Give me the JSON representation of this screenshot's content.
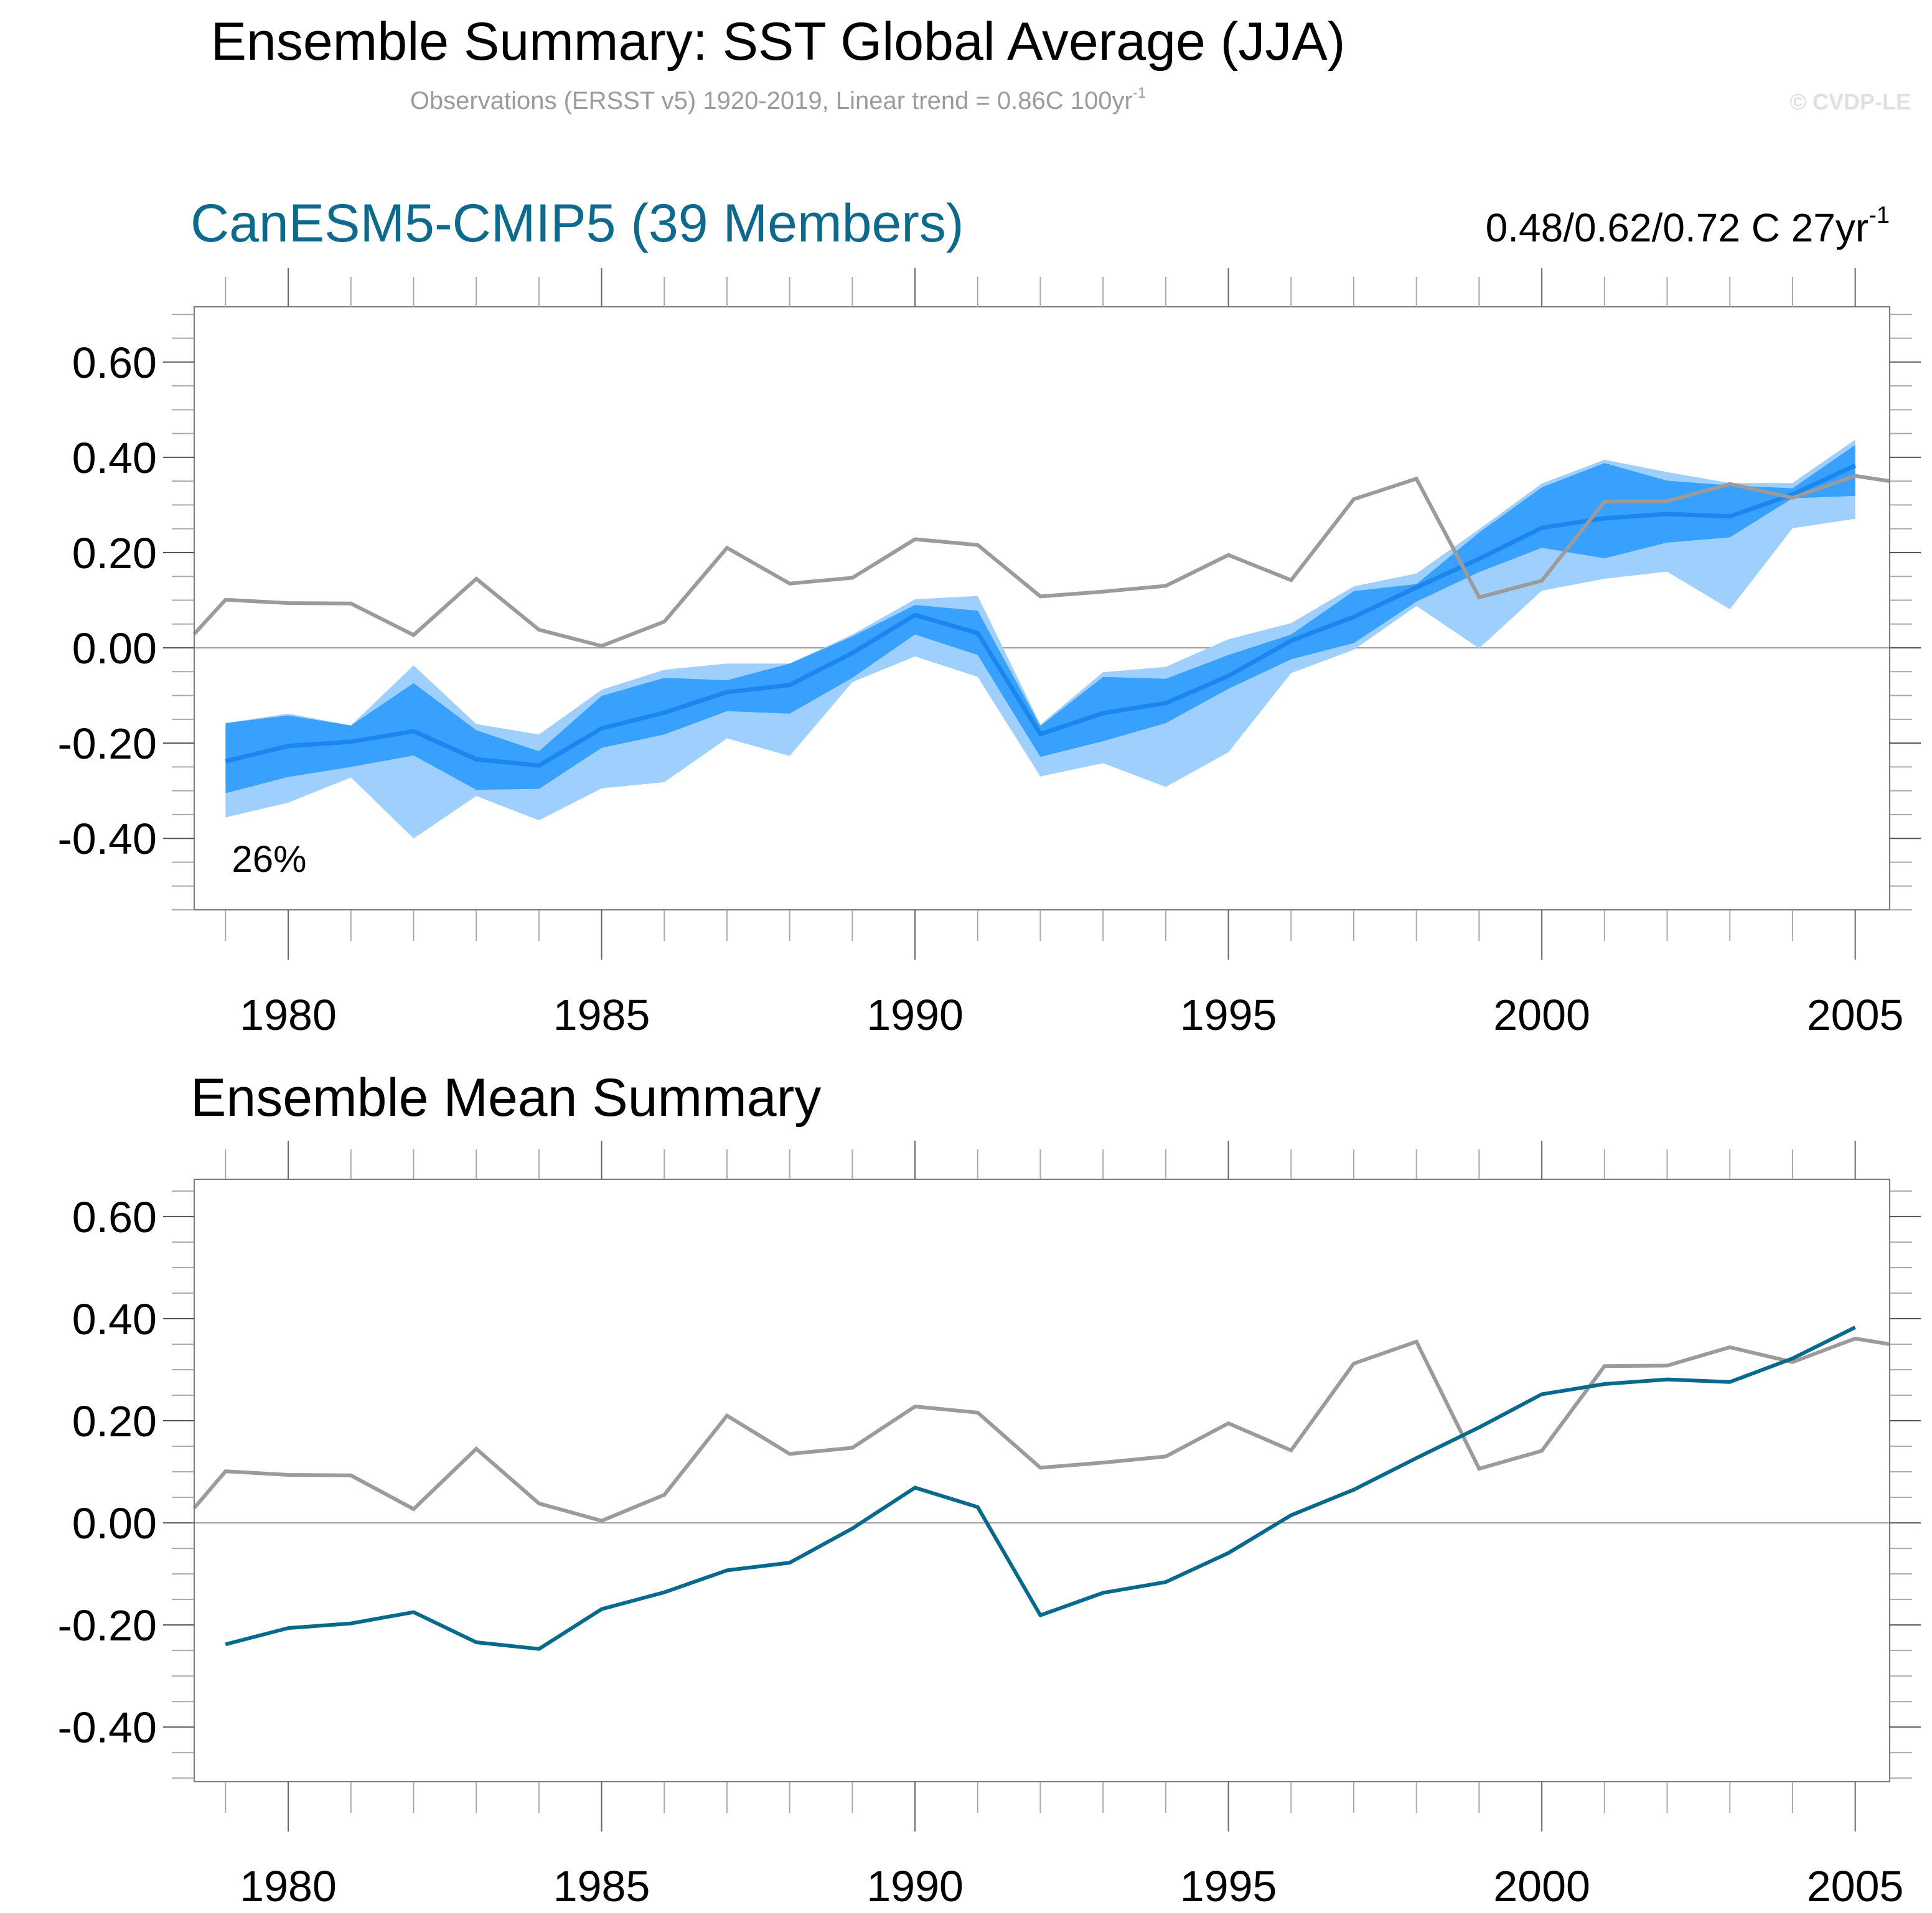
{
  "header": {
    "title": "Ensemble Summary: SST Global Average (JJA)",
    "subtitle_main": "Observations (ERSST v5) 1920-2019, Linear trend = 0.86C 100yr",
    "subtitle_sup": "-1",
    "copyright": "© CVDP-LE"
  },
  "panels": {
    "top": {
      "title": "CanESM5-CMIP5 (39 Members)",
      "trend_main": "0.48/0.62/0.72 C 27yr",
      "trend_sup": "-1",
      "percent_label": "26%"
    },
    "bottom": {
      "title": "Ensemble Mean Summary"
    }
  },
  "colors": {
    "title_teal": "#0d6a8c",
    "obs_line": "#9b9b9b",
    "band_outer": "#9fd0fd",
    "band_inner": "#38a0fd",
    "ens_mean_top": "#1a86ee",
    "ens_mean_bottom": "#076a8c",
    "axis": "#7a7a7a",
    "zero_line": "#9b9b9b"
  },
  "chart_data": [
    {
      "type": "area",
      "name": "ensemble-spread",
      "title": "CanESM5-CMIP5 (39 Members)",
      "xlabel": "",
      "ylabel": "",
      "xlim": [
        1978.5,
        2005.55
      ],
      "ylim": [
        -0.55,
        0.716
      ],
      "x_tick_labels": [
        "1980",
        "1985",
        "1990",
        "1995",
        "2000",
        "2005"
      ],
      "x_ticks": [
        1980,
        1985,
        1990,
        1995,
        2000,
        2005
      ],
      "y_tick_labels": [
        "0.60",
        "0.40",
        "0.20",
        "0.00",
        "-0.20",
        "-0.40"
      ],
      "y_ticks": [
        0.6,
        0.4,
        0.2,
        0.0,
        -0.2,
        -0.4
      ],
      "annotation": "26%",
      "grid": false,
      "years": [
        1979,
        1980,
        1981,
        1982,
        1983,
        1984,
        1985,
        1986,
        1987,
        1988,
        1989,
        1990,
        1991,
        1992,
        1993,
        1994,
        1995,
        1996,
        1997,
        1998,
        1999,
        2000,
        2001,
        2002,
        2003,
        2004,
        2005
      ],
      "series": [
        {
          "name": "outer-range-max",
          "values": [
            -0.158,
            -0.138,
            -0.163,
            -0.037,
            -0.16,
            -0.182,
            -0.088,
            -0.046,
            -0.033,
            -0.033,
            0.028,
            0.102,
            0.109,
            -0.161,
            -0.051,
            -0.04,
            0.018,
            0.052,
            0.129,
            0.156,
            0.249,
            0.345,
            0.395,
            0.369,
            0.346,
            0.346,
            0.437
          ]
        },
        {
          "name": "inner-range-max",
          "values": [
            -0.158,
            -0.142,
            -0.163,
            -0.074,
            -0.173,
            -0.217,
            -0.101,
            -0.063,
            -0.068,
            -0.033,
            0.024,
            0.09,
            0.078,
            -0.164,
            -0.061,
            -0.065,
            -0.015,
            0.028,
            0.119,
            0.134,
            0.242,
            0.337,
            0.388,
            0.351,
            0.341,
            0.335,
            0.426
          ]
        },
        {
          "name": "ensemble-mean",
          "values": [
            -0.238,
            -0.206,
            -0.197,
            -0.175,
            -0.234,
            -0.247,
            -0.169,
            -0.136,
            -0.093,
            -0.078,
            -0.011,
            0.069,
            0.031,
            -0.181,
            -0.137,
            -0.116,
            -0.059,
            0.015,
            0.065,
            0.127,
            0.187,
            0.252,
            0.272,
            0.281,
            0.276,
            0.322,
            0.383
          ]
        },
        {
          "name": "inner-range-min",
          "values": [
            -0.305,
            -0.271,
            -0.25,
            -0.226,
            -0.298,
            -0.296,
            -0.21,
            -0.182,
            -0.133,
            -0.138,
            -0.063,
            0.028,
            -0.015,
            -0.229,
            -0.196,
            -0.158,
            -0.086,
            -0.024,
            0.01,
            0.097,
            0.159,
            0.21,
            0.188,
            0.221,
            0.232,
            0.314,
            0.319
          ]
        },
        {
          "name": "outer-range-min",
          "values": [
            -0.356,
            -0.325,
            -0.272,
            -0.4,
            -0.311,
            -0.362,
            -0.295,
            -0.282,
            -0.19,
            -0.227,
            -0.072,
            -0.018,
            -0.061,
            -0.27,
            -0.242,
            -0.292,
            -0.219,
            -0.053,
            -0.004,
            0.088,
            -0.001,
            0.12,
            0.145,
            0.16,
            0.081,
            0.251,
            0.271
          ]
        }
      ],
      "observations": {
        "name": "ERSST v5",
        "x": [
          1978.5,
          1979,
          1980,
          1981,
          1982,
          1983,
          1984,
          1985,
          1986,
          1987,
          1988,
          1989,
          1990,
          1991,
          1992,
          1993,
          1994,
          1995,
          1996,
          1997,
          1998,
          1999,
          2000,
          2001,
          2002,
          2003,
          2004,
          2005,
          2005.55
        ],
        "values": [
          0.029,
          0.101,
          0.094,
          0.093,
          0.027,
          0.145,
          0.038,
          0.004,
          0.055,
          0.21,
          0.135,
          0.147,
          0.228,
          0.216,
          0.108,
          0.118,
          0.13,
          0.195,
          0.142,
          0.312,
          0.355,
          0.106,
          0.141,
          0.307,
          0.308,
          0.344,
          0.315,
          0.361,
          0.35
        ]
      }
    },
    {
      "type": "line",
      "name": "ensemble-mean-summary",
      "title": "Ensemble Mean Summary",
      "xlabel": "",
      "ylabel": "",
      "xlim": [
        1978.5,
        2005.55
      ],
      "ylim": [
        -0.507,
        0.673
      ],
      "x_tick_labels": [
        "1980",
        "1985",
        "1990",
        "1995",
        "2000",
        "2005"
      ],
      "x_ticks": [
        1980,
        1985,
        1990,
        1995,
        2000,
        2005
      ],
      "y_tick_labels": [
        "0.60",
        "0.40",
        "0.20",
        "0.00",
        "-0.20",
        "-0.40"
      ],
      "y_ticks": [
        0.6,
        0.4,
        0.2,
        0.0,
        -0.2,
        -0.4
      ],
      "grid": false,
      "series": [
        {
          "name": "CanESM5-CMIP5 ensemble mean",
          "x": [
            1979,
            1980,
            1981,
            1982,
            1983,
            1984,
            1985,
            1986,
            1987,
            1988,
            1989,
            1990,
            1991,
            1992,
            1993,
            1994,
            1995,
            1996,
            1997,
            1998,
            1999,
            2000,
            2001,
            2002,
            2003,
            2004,
            2005
          ],
          "values": [
            -0.238,
            -0.206,
            -0.197,
            -0.175,
            -0.234,
            -0.247,
            -0.169,
            -0.136,
            -0.093,
            -0.078,
            -0.011,
            0.069,
            0.031,
            -0.181,
            -0.137,
            -0.116,
            -0.059,
            0.015,
            0.065,
            0.127,
            0.187,
            0.252,
            0.272,
            0.281,
            0.276,
            0.322,
            0.383
          ]
        },
        {
          "name": "Observations (ERSST v5)",
          "x": [
            1978.5,
            1979,
            1980,
            1981,
            1982,
            1983,
            1984,
            1985,
            1986,
            1987,
            1988,
            1989,
            1990,
            1991,
            1992,
            1993,
            1994,
            1995,
            1996,
            1997,
            1998,
            1999,
            2000,
            2001,
            2002,
            2003,
            2004,
            2005,
            2005.55
          ],
          "values": [
            0.029,
            0.101,
            0.094,
            0.093,
            0.027,
            0.145,
            0.038,
            0.004,
            0.055,
            0.21,
            0.135,
            0.147,
            0.228,
            0.216,
            0.108,
            0.118,
            0.13,
            0.195,
            0.142,
            0.312,
            0.355,
            0.106,
            0.141,
            0.307,
            0.308,
            0.344,
            0.315,
            0.361,
            0.35
          ]
        }
      ]
    }
  ]
}
